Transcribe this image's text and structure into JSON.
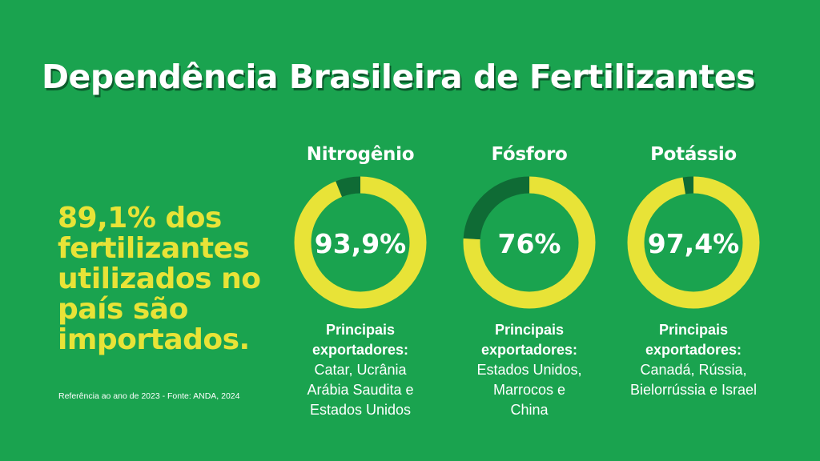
{
  "title": "Dependência Brasileira de Fertilizantes",
  "headline": "89,1%  dos fertilizantes utilizados no país são importados.",
  "reference": "Referência ao ano de 2023 - Fonte: ANDA, 2024",
  "colors": {
    "background": "#1aa34f",
    "imported": "#e8e337",
    "domestic": "#0f6b35",
    "text": "#ffffff"
  },
  "chart_data": [
    {
      "type": "pie",
      "title": "Nitrogênio",
      "value_label": "93,9%",
      "values": [
        93.9,
        6.1
      ],
      "exporters_label": "Principais exportadores:",
      "exporters": [
        "Catar, Ucrânia",
        "Arábia Saudita e",
        "Estados Unidos"
      ]
    },
    {
      "type": "pie",
      "title": "Fósforo",
      "value_label": "76%",
      "values": [
        76,
        24
      ],
      "exporters_label": "Principais exportadores:",
      "exporters": [
        "Estados Unidos,",
        "Marrocos e",
        "China"
      ]
    },
    {
      "type": "pie",
      "title": "Potássio",
      "value_label": "97,4%",
      "values": [
        97.4,
        2.6
      ],
      "exporters_label": "Principais exportadores:",
      "exporters": [
        "Canadá, Rússia,",
        "Bielorrússia e Israel"
      ]
    }
  ]
}
